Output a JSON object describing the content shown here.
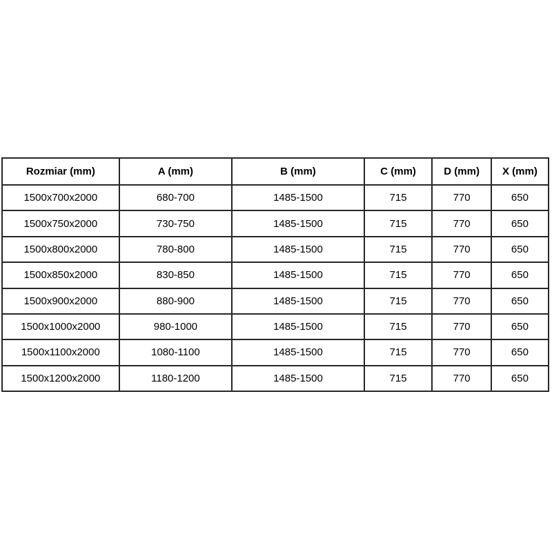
{
  "table": {
    "headers": [
      "Rozmiar (mm)",
      "A (mm)",
      "B (mm)",
      "C (mm)",
      "D (mm)",
      "X (mm)"
    ],
    "rows": [
      [
        "1500x700x2000",
        "680-700",
        "1485-1500",
        "715",
        "770",
        "650"
      ],
      [
        "1500x750x2000",
        "730-750",
        "1485-1500",
        "715",
        "770",
        "650"
      ],
      [
        "1500x800x2000",
        "780-800",
        "1485-1500",
        "715",
        "770",
        "650"
      ],
      [
        "1500x850x2000",
        "830-850",
        "1485-1500",
        "715",
        "770",
        "650"
      ],
      [
        "1500x900x2000",
        "880-900",
        "1485-1500",
        "715",
        "770",
        "650"
      ],
      [
        "1500x1000x2000",
        "980-1000",
        "1485-1500",
        "715",
        "770",
        "650"
      ],
      [
        "1500x1100x2000",
        "1080-1100",
        "1485-1500",
        "715",
        "770",
        "650"
      ],
      [
        "1500x1200x2000",
        "1180-1200",
        "1485-1500",
        "715",
        "770",
        "650"
      ]
    ],
    "border_color": "#262626",
    "background_color": "#ffffff",
    "text_color": "#000000"
  }
}
